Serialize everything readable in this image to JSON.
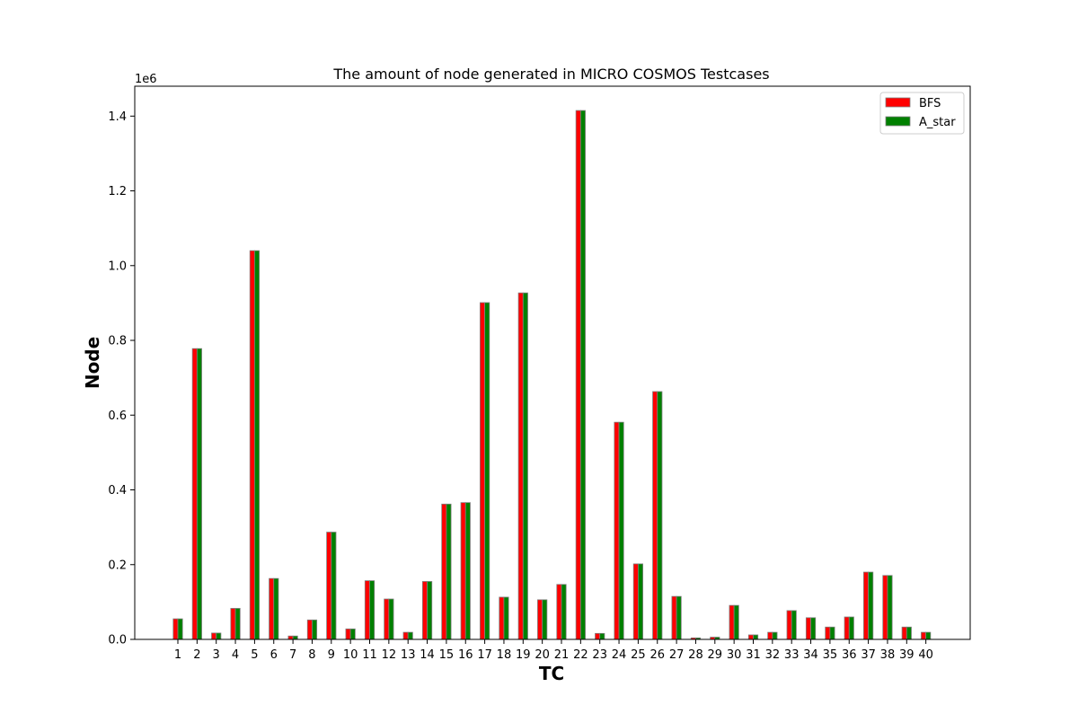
{
  "chart_data": {
    "type": "bar",
    "title": "The amount of node generated in MICRO COSMOS Testcases",
    "xlabel": "TC",
    "ylabel": "Node",
    "y_offset_text": "1e6",
    "ylim": [
      0,
      1480000
    ],
    "yticks": [
      0,
      200000,
      400000,
      600000,
      800000,
      1000000,
      1200000,
      1400000
    ],
    "ytick_labels": [
      "0.0",
      "0.2",
      "0.4",
      "0.6",
      "0.8",
      "1.0",
      "1.2",
      "1.4"
    ],
    "grid": false,
    "legend_position": "top-right",
    "categories": [
      "1",
      "2",
      "3",
      "4",
      "5",
      "6",
      "7",
      "8",
      "9",
      "10",
      "11",
      "12",
      "13",
      "14",
      "15",
      "16",
      "17",
      "18",
      "19",
      "20",
      "21",
      "22",
      "23",
      "24",
      "25",
      "26",
      "27",
      "28",
      "29",
      "30",
      "31",
      "32",
      "33",
      "34",
      "35",
      "36",
      "37",
      "38",
      "39",
      "40"
    ],
    "series": [
      {
        "name": "BFS",
        "color": "#ff0000",
        "values": [
          55000,
          778000,
          17000,
          83000,
          1040000,
          163000,
          9000,
          52000,
          287000,
          28000,
          157000,
          108000,
          19000,
          155000,
          362000,
          366000,
          901000,
          113000,
          927000,
          106000,
          147000,
          1415000,
          16000,
          581000,
          202000,
          663000,
          115000,
          4000,
          6000,
          91000,
          12000,
          19000,
          77000,
          58000,
          33000,
          60000,
          180000,
          171000,
          33000,
          19000
        ]
      },
      {
        "name": "A_star",
        "color": "#008000",
        "values": [
          55000,
          778000,
          17000,
          83000,
          1040000,
          163000,
          9000,
          52000,
          287000,
          28000,
          157000,
          108000,
          19000,
          155000,
          362000,
          366000,
          901000,
          113000,
          927000,
          106000,
          147000,
          1415000,
          16000,
          581000,
          202000,
          663000,
          115000,
          4000,
          6000,
          91000,
          12000,
          19000,
          77000,
          58000,
          33000,
          60000,
          180000,
          171000,
          33000,
          19000
        ]
      }
    ]
  }
}
